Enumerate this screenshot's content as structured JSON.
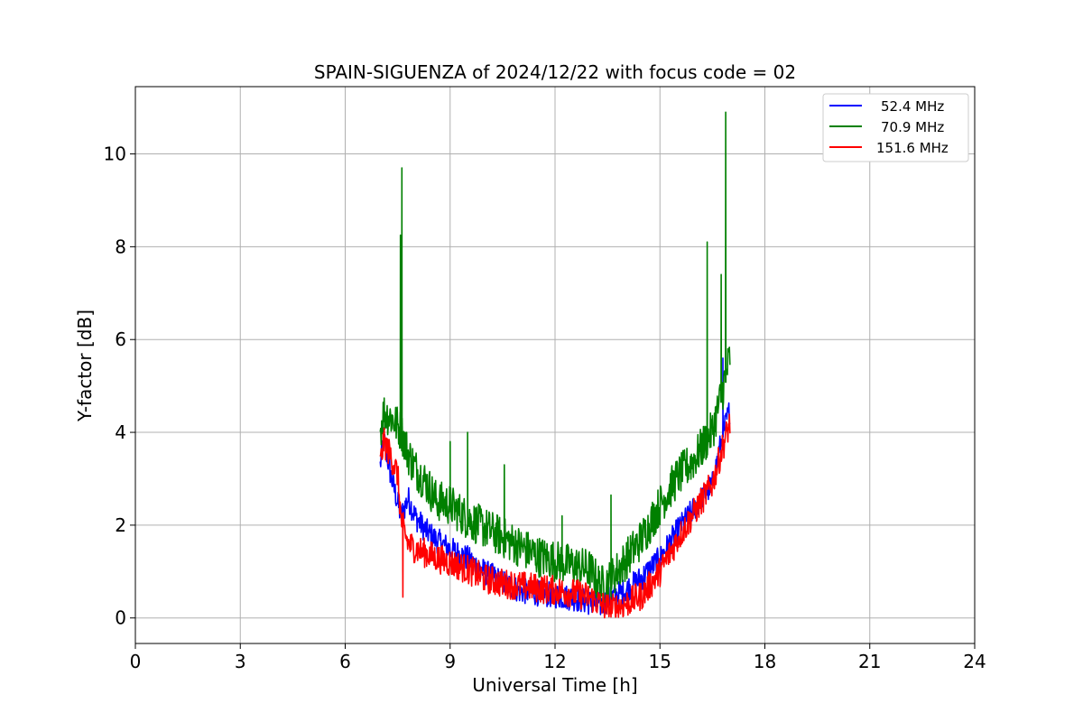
{
  "chart_data": {
    "type": "line",
    "title": "SPAIN-SIGUENZA of 2024/12/22 with focus code = 02",
    "xlabel": "Universal Time [h]",
    "ylabel": "Y-factor [dB]",
    "xlim": [
      0,
      24
    ],
    "ylim": [
      -0.55,
      11.45
    ],
    "xticks": [
      0,
      3,
      6,
      9,
      12,
      15,
      18,
      21,
      24
    ],
    "yticks": [
      0,
      2,
      4,
      6,
      8,
      10
    ],
    "grid": true,
    "legend_position": "top-right",
    "series": [
      {
        "name": "52.4 MHz",
        "color": "#0000ff",
        "noise": 0.28,
        "x": [
          7.0,
          7.1,
          7.3,
          7.5,
          7.6,
          7.8,
          8.0,
          8.3,
          8.6,
          9.0,
          9.5,
          10.0,
          10.5,
          11.0,
          11.5,
          12.0,
          12.5,
          13.0,
          13.3,
          13.6,
          14.0,
          14.5,
          15.0,
          15.5,
          16.0,
          16.5,
          16.8,
          17.0
        ],
        "y": [
          3.2,
          3.8,
          3.0,
          2.4,
          2.1,
          2.5,
          2.1,
          1.8,
          1.6,
          1.4,
          1.2,
          0.9,
          0.7,
          0.5,
          0.45,
          0.4,
          0.35,
          0.25,
          0.2,
          0.35,
          0.5,
          0.8,
          1.2,
          1.8,
          2.3,
          2.8,
          3.9,
          4.4
        ]
      },
      {
        "name": "70.9 MHz",
        "color": "#008000",
        "noise": 0.45,
        "x": [
          7.0,
          7.1,
          7.3,
          7.5,
          7.6,
          7.8,
          8.0,
          8.3,
          8.6,
          9.0,
          9.5,
          10.0,
          10.5,
          11.0,
          11.5,
          12.0,
          12.5,
          13.0,
          13.3,
          13.6,
          14.0,
          14.5,
          15.0,
          15.5,
          16.0,
          16.5,
          16.8,
          17.0
        ],
        "y": [
          3.9,
          4.3,
          4.2,
          4.0,
          3.9,
          3.4,
          3.1,
          2.8,
          2.4,
          2.3,
          2.0,
          1.8,
          1.6,
          1.4,
          1.2,
          1.1,
          1.0,
          0.9,
          0.55,
          0.7,
          1.1,
          1.6,
          2.3,
          2.9,
          3.3,
          3.9,
          4.8,
          5.5
        ]
      },
      {
        "name": "151.6 MHz",
        "color": "#ff0000",
        "noise": 0.32,
        "x": [
          7.0,
          7.1,
          7.3,
          7.5,
          7.6,
          7.8,
          8.0,
          8.3,
          8.6,
          9.0,
          9.5,
          10.0,
          10.5,
          11.0,
          11.5,
          12.0,
          12.5,
          13.0,
          13.3,
          13.6,
          14.0,
          14.5,
          15.0,
          15.5,
          16.0,
          16.5,
          16.8,
          17.0
        ],
        "y": [
          3.2,
          3.7,
          3.4,
          3.0,
          2.0,
          1.5,
          1.4,
          1.3,
          1.2,
          1.1,
          0.95,
          0.75,
          0.65,
          0.6,
          0.55,
          0.5,
          0.45,
          0.35,
          0.2,
          0.1,
          0.2,
          0.4,
          0.9,
          1.6,
          2.2,
          2.8,
          3.6,
          4.1
        ]
      }
    ],
    "spikes": [
      {
        "series": "70.9 MHz",
        "x": 7.62,
        "y": 9.7
      },
      {
        "series": "70.9 MHz",
        "x": 7.58,
        "y": 8.25
      },
      {
        "series": "70.9 MHz",
        "x": 9.0,
        "y": 3.8
      },
      {
        "series": "70.9 MHz",
        "x": 9.5,
        "y": 4.0
      },
      {
        "series": "70.9 MHz",
        "x": 10.55,
        "y": 3.3
      },
      {
        "series": "70.9 MHz",
        "x": 12.2,
        "y": 2.2
      },
      {
        "series": "70.9 MHz",
        "x": 13.6,
        "y": 2.65
      },
      {
        "series": "70.9 MHz",
        "x": 16.35,
        "y": 8.1
      },
      {
        "series": "70.9 MHz",
        "x": 16.75,
        "y": 7.4
      },
      {
        "series": "70.9 MHz",
        "x": 16.88,
        "y": 10.9
      },
      {
        "series": "151.6 MHz",
        "x": 7.65,
        "y": 0.45
      },
      {
        "series": "52.4 MHz",
        "x": 16.8,
        "y": 5.6
      }
    ]
  }
}
